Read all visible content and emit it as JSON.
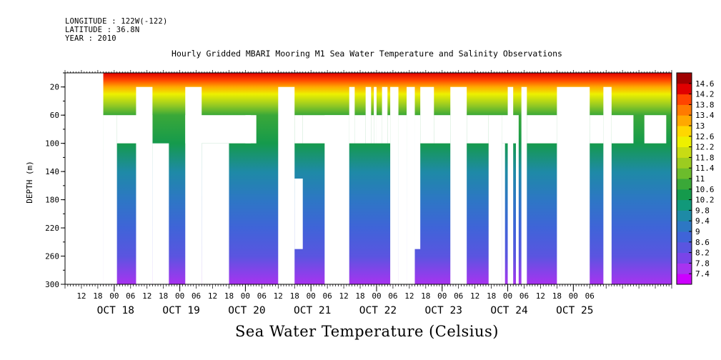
{
  "header": {
    "lines": [
      "LONGITUDE : 122W(-122)",
      "LATITUDE : 36.8N",
      "YEAR : 2010"
    ]
  },
  "chart_data": {
    "type": "heatmap",
    "title": "Hourly Gridded MBARI Mooring M1 Sea Water Temperature and Salinity Observations",
    "xlabel": "Sea Water Temperature (Celsius)",
    "ylabel": "DEPTH (m)",
    "x_range_hours": [
      "2010-10-18 06:00",
      "2010-10-25 12:00"
    ],
    "x_hour_ticks": [
      "12",
      "18",
      "00",
      "06",
      "12",
      "18",
      "00",
      "06",
      "12",
      "18",
      "00",
      "06",
      "12",
      "18",
      "00",
      "06",
      "12",
      "18",
      "00",
      "06",
      "12",
      "18",
      "00",
      "06",
      "12",
      "18",
      "00",
      "06",
      "12",
      "18",
      "00",
      "06"
    ],
    "x_day_labels": [
      "OCT 18",
      "OCT 19",
      "OCT 20",
      "OCT 21",
      "OCT 22",
      "OCT 23",
      "OCT 24",
      "OCT 25"
    ],
    "ylim": [
      300,
      0
    ],
    "y_ticks": [
      20,
      60,
      100,
      140,
      180,
      220,
      260,
      300
    ],
    "colorbar": {
      "levels": [
        7.4,
        7.8,
        8.2,
        8.6,
        9,
        9.4,
        9.8,
        10.2,
        10.6,
        11,
        11.4,
        11.8,
        12.2,
        12.6,
        13,
        13.4,
        13.8,
        14.2,
        14.6
      ],
      "colors": [
        "#cc00ff",
        "#a833f0",
        "#7a44e8",
        "#5a55e0",
        "#3f64d8",
        "#2d77c4",
        "#1e8aa6",
        "#11997a",
        "#159a4c",
        "#3aa838",
        "#6cbc2c",
        "#9ccc20",
        "#c8dc14",
        "#eef000",
        "#ffd700",
        "#ffa800",
        "#ff7a00",
        "#ff4400",
        "#e00000",
        "#a00000"
      ]
    },
    "depth_profile_celsius": [
      {
        "depth": 0,
        "value": 14.4
      },
      {
        "depth": 10,
        "value": 14.0
      },
      {
        "depth": 20,
        "value": 13.2
      },
      {
        "depth": 30,
        "value": 12.4
      },
      {
        "depth": 45,
        "value": 11.4
      },
      {
        "depth": 60,
        "value": 10.8
      },
      {
        "depth": 100,
        "value": 10.2
      },
      {
        "depth": 140,
        "value": 9.6
      },
      {
        "depth": 180,
        "value": 9.0
      },
      {
        "depth": 220,
        "value": 8.6
      },
      {
        "depth": 260,
        "value": 8.2
      },
      {
        "depth": 300,
        "value": 7.6
      }
    ],
    "data_gaps_hours": [
      {
        "h0": 0,
        "h1": 14,
        "d0": 0,
        "d1": 300
      },
      {
        "h0": 14,
        "h1": 19,
        "d0": 60,
        "d1": 300
      },
      {
        "h0": 26,
        "h1": 32,
        "d0": 20,
        "d1": 300
      },
      {
        "h0": 19,
        "h1": 32,
        "d0": 60,
        "d1": 100
      },
      {
        "h0": 32,
        "h1": 38,
        "d0": 100,
        "d1": 300
      },
      {
        "h0": 44,
        "h1": 50,
        "d0": 20,
        "d1": 300
      },
      {
        "h0": 50,
        "h1": 60,
        "d0": 100,
        "d1": 300
      },
      {
        "h0": 44,
        "h1": 68,
        "d0": 60,
        "d1": 100
      },
      {
        "h0": 66,
        "h1": 70,
        "d0": 60,
        "d1": 100
      },
      {
        "h0": 78,
        "h1": 84,
        "d0": 20,
        "d1": 300
      },
      {
        "h0": 84,
        "h1": 87,
        "d0": 60,
        "d1": 100
      },
      {
        "h0": 84,
        "h1": 87,
        "d0": 150,
        "d1": 250
      },
      {
        "h0": 87,
        "h1": 104,
        "d0": 60,
        "d1": 100
      },
      {
        "h0": 95,
        "h1": 104,
        "d0": 60,
        "d1": 300
      },
      {
        "h0": 104,
        "h1": 106,
        "d0": 20,
        "d1": 100
      },
      {
        "h0": 106,
        "h1": 110,
        "d0": 60,
        "d1": 100
      },
      {
        "h0": 110,
        "h1": 112,
        "d0": 20,
        "d1": 100
      },
      {
        "h0": 112,
        "h1": 113,
        "d0": 60,
        "d1": 100
      },
      {
        "h0": 113,
        "h1": 114,
        "d0": 20,
        "d1": 100
      },
      {
        "h0": 114,
        "h1": 116,
        "d0": 60,
        "d1": 100
      },
      {
        "h0": 116,
        "h1": 118,
        "d0": 20,
        "d1": 100
      },
      {
        "h0": 118,
        "h1": 119,
        "d0": 60,
        "d1": 100
      },
      {
        "h0": 119,
        "h1": 122,
        "d0": 20,
        "d1": 300
      },
      {
        "h0": 122,
        "h1": 125,
        "d0": 60,
        "d1": 300
      },
      {
        "h0": 125,
        "h1": 128,
        "d0": 20,
        "d1": 300
      },
      {
        "h0": 128,
        "h1": 130,
        "d0": 60,
        "d1": 250
      },
      {
        "h0": 130,
        "h1": 135,
        "d0": 20,
        "d1": 100
      },
      {
        "h0": 135,
        "h1": 141,
        "d0": 60,
        "d1": 100
      },
      {
        "h0": 141,
        "h1": 147,
        "d0": 20,
        "d1": 300
      },
      {
        "h0": 147,
        "h1": 155,
        "d0": 60,
        "d1": 100
      },
      {
        "h0": 155,
        "h1": 160,
        "d0": 60,
        "d1": 300
      },
      {
        "h0": 160,
        "h1": 161,
        "d0": 100,
        "d1": 300
      },
      {
        "h0": 160,
        "h1": 165,
        "d0": 60,
        "d1": 100
      },
      {
        "h0": 162,
        "h1": 164,
        "d0": 20,
        "d1": 300
      },
      {
        "h0": 165,
        "h1": 166,
        "d0": 60,
        "d1": 300
      },
      {
        "h0": 167,
        "h1": 169,
        "d0": 20,
        "d1": 300
      },
      {
        "h0": 169,
        "h1": 180,
        "d0": 60,
        "d1": 100
      },
      {
        "h0": 180,
        "h1": 192,
        "d0": 20,
        "d1": 300
      },
      {
        "h0": 192,
        "h1": 197,
        "d0": 60,
        "d1": 100
      },
      {
        "h0": 197,
        "h1": 200,
        "d0": 20,
        "d1": 300
      },
      {
        "h0": 200,
        "h1": 208,
        "d0": 60,
        "d1": 100
      },
      {
        "h0": 212,
        "h1": 220,
        "d0": 60,
        "d1": 100
      }
    ]
  }
}
